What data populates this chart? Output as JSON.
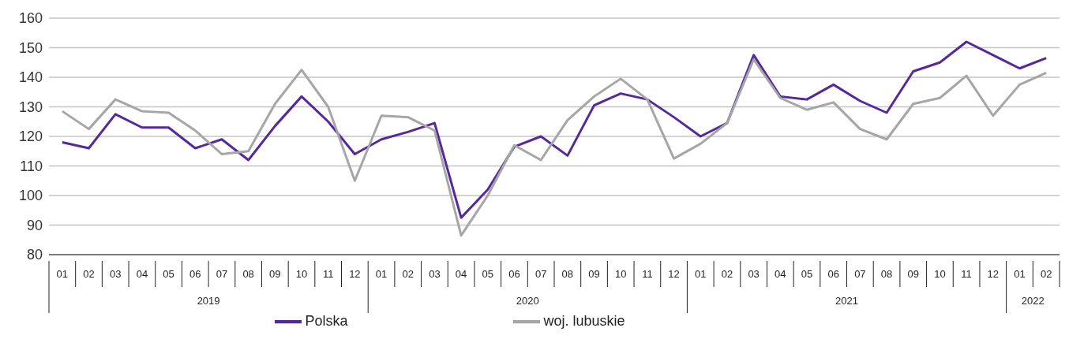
{
  "chart_data": {
    "type": "line",
    "categories": [
      "01",
      "02",
      "03",
      "04",
      "05",
      "06",
      "07",
      "08",
      "09",
      "10",
      "11",
      "12",
      "01",
      "02",
      "03",
      "04",
      "05",
      "06",
      "07",
      "08",
      "09",
      "10",
      "11",
      "12",
      "01",
      "02",
      "03",
      "04",
      "05",
      "06",
      "07",
      "08",
      "09",
      "10",
      "11",
      "12",
      "01",
      "02"
    ],
    "annotations": [
      "2019",
      "2020",
      "2021",
      "2022"
    ],
    "series": [
      {
        "name": "Polska",
        "color": "#55289b",
        "values": [
          118,
          116,
          127.5,
          123,
          123,
          116,
          119,
          112,
          123.5,
          133.5,
          125,
          114,
          119,
          121.5,
          124.5,
          92.5,
          102,
          116.5,
          120,
          113.5,
          130.5,
          134.5,
          132.5,
          126.5,
          120,
          124.5,
          147.5,
          133.5,
          132.5,
          137.5,
          132,
          128,
          142,
          145,
          152,
          147.5,
          143,
          146.5
        ]
      },
      {
        "name": "woj. lubuskie",
        "color": "#a6a6a6",
        "values": [
          128.5,
          122.5,
          132.5,
          128.5,
          128,
          122,
          114,
          115,
          131,
          142.5,
          130,
          105,
          127,
          126.5,
          122,
          86.5,
          100,
          117,
          112,
          125.5,
          133.5,
          139.5,
          132.5,
          112.5,
          117.5,
          124.5,
          146,
          133,
          129,
          131.5,
          122.5,
          119,
          131,
          133,
          140.5,
          127,
          137.5,
          141.5
        ]
      }
    ],
    "ylim": [
      80,
      160
    ],
    "yticks": [
      80,
      90,
      100,
      110,
      120,
      130,
      140,
      150,
      160
    ],
    "grid": "y",
    "legend": "bottom",
    "marker": "none",
    "line_style": "solid"
  }
}
